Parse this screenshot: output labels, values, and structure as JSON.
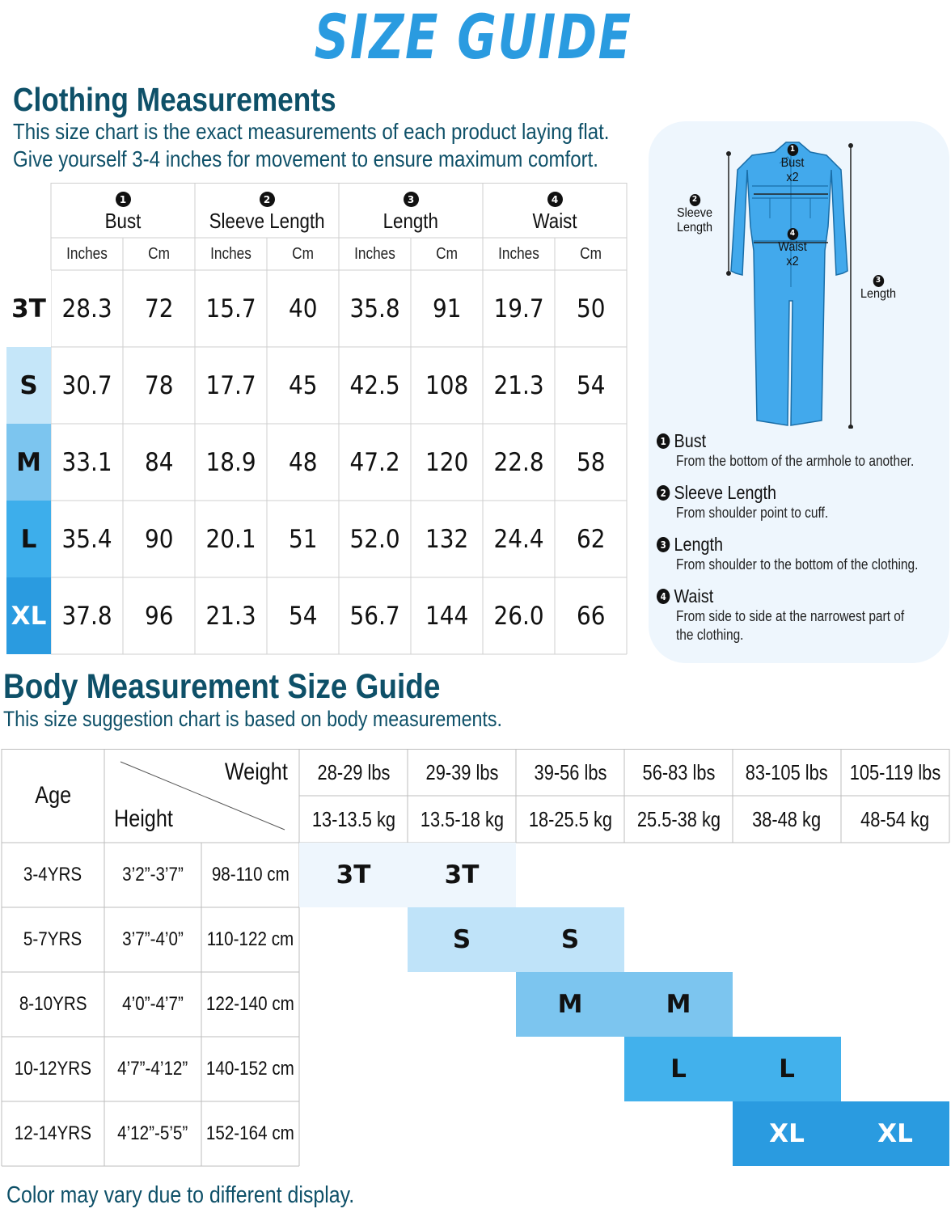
{
  "title": "SIZE GUIDE",
  "clothing": {
    "heading": "Clothing Measurements",
    "desc_line1": "This size chart is the exact measurements of each product laying flat.",
    "desc_line2": "Give yourself 3-4 inches for movement to ensure maximum comfort.",
    "columns": [
      {
        "num": "1",
        "name": "Bust"
      },
      {
        "num": "2",
        "name": "Sleeve Length"
      },
      {
        "num": "3",
        "name": "Length"
      },
      {
        "num": "4",
        "name": "Waist"
      }
    ],
    "units": [
      "Inches",
      "Cm",
      "Inches",
      "Cm",
      "Inches",
      "Cm",
      "Inches",
      "Cm"
    ],
    "rows": [
      {
        "size": "3T",
        "color": "#ffffff",
        "text_color": "#111111",
        "values": [
          "28.3",
          "72",
          "15.7",
          "40",
          "35.8",
          "91",
          "19.7",
          "50"
        ]
      },
      {
        "size": "S",
        "color": "#c5e6f9",
        "text_color": "#111111",
        "values": [
          "30.7",
          "78",
          "17.7",
          "45",
          "42.5",
          "108",
          "21.3",
          "54"
        ]
      },
      {
        "size": "M",
        "color": "#7cc5ef",
        "text_color": "#111111",
        "values": [
          "33.1",
          "84",
          "18.9",
          "48",
          "47.2",
          "120",
          "22.8",
          "58"
        ]
      },
      {
        "size": "L",
        "color": "#3daeeb",
        "text_color": "#111111",
        "values": [
          "35.4",
          "90",
          "20.1",
          "51",
          "52.0",
          "132",
          "24.4",
          "62"
        ]
      },
      {
        "size": "XL",
        "color": "#2a9be0",
        "text_color": "#ffffff",
        "values": [
          "37.8",
          "96",
          "21.3",
          "54",
          "56.7",
          "144",
          "26.0",
          "66"
        ]
      }
    ]
  },
  "diagram": {
    "bust_num": "1",
    "bust_label": "Bust",
    "bust_mult": "x2",
    "sleeve_num": "2",
    "sleeve_label1": "Sleeve",
    "sleeve_label2": "Length",
    "length_num": "3",
    "length_label": "Length",
    "waist_num": "4",
    "waist_label": "Waist",
    "waist_mult": "x2",
    "garment_color": "#42a9ec",
    "definitions": [
      {
        "num": "1",
        "term": "Bust",
        "desc": [
          "From the bottom of the armhole to another."
        ]
      },
      {
        "num": "2",
        "term": "Sleeve Length",
        "desc": [
          "From shoulder point to cuff."
        ]
      },
      {
        "num": "3",
        "term": "Length",
        "desc": [
          "From shoulder to the bottom of the clothing."
        ]
      },
      {
        "num": "4",
        "term": "Waist",
        "desc": [
          "From side to side at the narrowest part of",
          "the clothing."
        ]
      }
    ]
  },
  "body": {
    "heading": "Body Measurement Size Guide",
    "desc": "This size suggestion chart is based on body measurements.",
    "age_label": "Age",
    "weight_label": "Weight",
    "height_label": "Height",
    "weights_lbs": [
      "28-29 lbs",
      "29-39 lbs",
      "39-56 lbs",
      "56-83 lbs",
      "83-105 lbs",
      "105-119 lbs"
    ],
    "weights_kg": [
      "13-13.5 kg",
      "13.5-18 kg",
      "18-25.5 kg",
      "25.5-38 kg",
      "38-48 kg",
      "48-54 kg"
    ],
    "rows": [
      {
        "age": "3-4YRS",
        "height_in": "3’2”-3’7”",
        "height_cm": "98-110 cm",
        "start_col": 0,
        "size": "3T",
        "color": "#eef6fd",
        "text_color": "#111111"
      },
      {
        "age": "5-7YRS",
        "height_in": "3’7”-4’0”",
        "height_cm": "110-122 cm",
        "start_col": 1,
        "size": "S",
        "color": "#bfe3f9",
        "text_color": "#111111"
      },
      {
        "age": "8-10YRS",
        "height_in": "4’0”-4’7”",
        "height_cm": "122-140 cm",
        "start_col": 2,
        "size": "M",
        "color": "#7cc5ef",
        "text_color": "#111111"
      },
      {
        "age": "10-12YRS",
        "height_in": "4’7”-4’12”",
        "height_cm": "140-152 cm",
        "start_col": 3,
        "size": "L",
        "color": "#42b1ec",
        "text_color": "#111111"
      },
      {
        "age": "12-14YRS",
        "height_in": "4’12”-5’5”",
        "height_cm": "152-164 cm",
        "start_col": 4,
        "size": "XL",
        "color": "#2a9be0",
        "text_color": "#ffffff"
      }
    ]
  },
  "footer": "Color may vary due to different display."
}
